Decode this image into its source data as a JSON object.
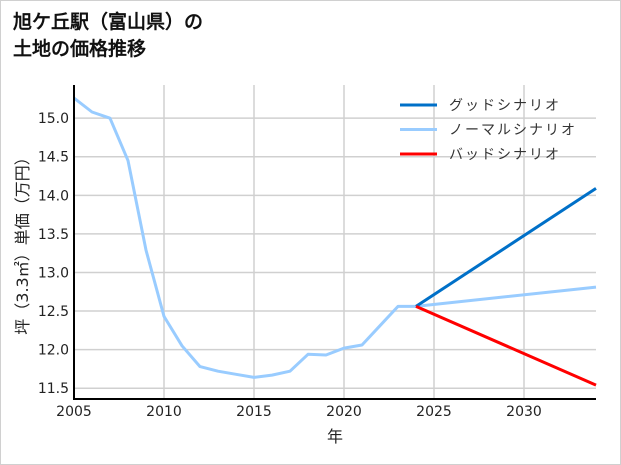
{
  "chart_data": {
    "type": "line",
    "title_lines": [
      "旭ケ丘駅（富山県）の",
      "土地の価格推移"
    ],
    "xlabel": "年",
    "ylabel": "坪（3.3㎡）単価（万円）",
    "xlim": [
      2005,
      2034
    ],
    "ylim": [
      11.36,
      15.43
    ],
    "xticks": [
      2005,
      2010,
      2015,
      2020,
      2025,
      2030
    ],
    "yticks": [
      "11.5",
      "12.0",
      "12.5",
      "13.0",
      "13.5",
      "14.0",
      "14.5",
      "15.0"
    ],
    "grid": true,
    "legend_position": "top-right",
    "series": [
      {
        "name": "グッドシナリオ",
        "color": "#0070c8",
        "x": [
          2024,
          2034
        ],
        "y": [
          12.56,
          14.09
        ]
      },
      {
        "name": "ノーマルシナリオ",
        "color": "#99ccff",
        "x": [
          2005,
          2006,
          2007,
          2008,
          2009,
          2010,
          2011,
          2012,
          2013,
          2014,
          2015,
          2016,
          2017,
          2018,
          2019,
          2020,
          2021,
          2022,
          2023,
          2024,
          2034
        ],
        "y": [
          15.26,
          15.08,
          15.0,
          14.45,
          13.29,
          12.43,
          12.05,
          11.78,
          11.72,
          11.68,
          11.64,
          11.67,
          11.72,
          11.94,
          11.93,
          12.02,
          12.06,
          12.31,
          12.56,
          12.56,
          12.81
        ]
      },
      {
        "name": "バッドシナリオ",
        "color": "#ff0000",
        "x": [
          2024,
          2034
        ],
        "y": [
          12.56,
          11.54
        ]
      }
    ]
  }
}
